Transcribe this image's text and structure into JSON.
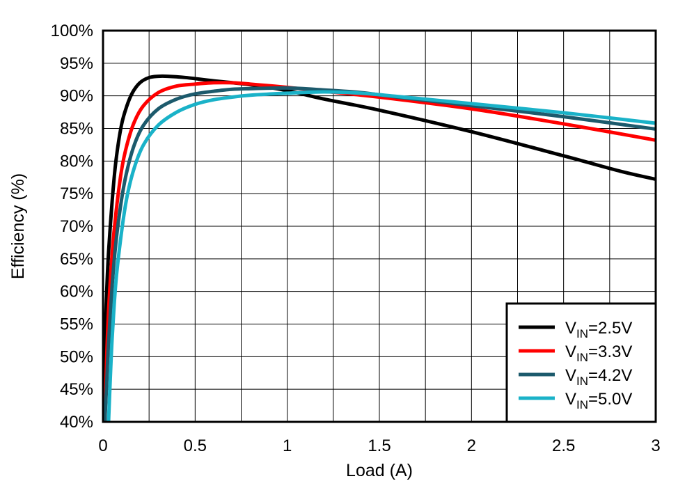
{
  "chart_data": {
    "type": "line",
    "title": "",
    "xlabel": "Load (A)",
    "ylabel": "Efficiency (%)",
    "xlim": [
      0,
      3
    ],
    "ylim": [
      40,
      100
    ],
    "x_ticks": [
      0,
      0.5,
      1,
      1.5,
      2,
      2.5,
      3
    ],
    "x_tick_labels": [
      "0",
      "0.5",
      "1",
      "1.5",
      "2",
      "2.5",
      "3"
    ],
    "y_ticks": [
      40,
      45,
      50,
      55,
      60,
      65,
      70,
      75,
      80,
      85,
      90,
      95,
      100
    ],
    "y_tick_labels": [
      "40%",
      "45%",
      "50%",
      "55%",
      "60%",
      "65%",
      "70%",
      "75%",
      "80%",
      "85%",
      "90%",
      "95%",
      "100%"
    ],
    "grid": true,
    "legend_position": "bottom-right",
    "series": [
      {
        "name": "VIN=2.5V",
        "label_main": "V",
        "label_sub": "IN",
        "label_rest": "=2.5V",
        "color": "#000000",
        "x": [
          0.005,
          0.01,
          0.02,
          0.03,
          0.05,
          0.07,
          0.1,
          0.13,
          0.16,
          0.2,
          0.25,
          0.3,
          0.35,
          0.45,
          0.6,
          0.8,
          1.0,
          1.2,
          1.5,
          2.0,
          2.5,
          2.8,
          3.0
        ],
        "y": [
          40,
          52,
          60,
          66,
          74,
          80,
          85.5,
          88.5,
          90.5,
          92,
          92.8,
          93,
          93,
          92.8,
          92.3,
          91.7,
          90.8,
          89.5,
          87.8,
          84.5,
          80.8,
          78.5,
          77.2
        ]
      },
      {
        "name": "VIN=3.3V",
        "label_main": "V",
        "label_sub": "IN",
        "label_rest": "=3.3V",
        "color": "#ff0000",
        "x": [
          0.01,
          0.02,
          0.03,
          0.05,
          0.07,
          0.1,
          0.13,
          0.17,
          0.22,
          0.3,
          0.4,
          0.5,
          0.6,
          0.7,
          0.8,
          1.0,
          1.2,
          1.5,
          2.0,
          2.5,
          3.0
        ],
        "y": [
          40,
          50,
          57,
          66,
          72,
          78.5,
          82.5,
          86,
          88.5,
          90.5,
          91.5,
          91.8,
          92,
          92,
          91.8,
          91.3,
          90.7,
          89.8,
          88,
          85.7,
          83.2
        ]
      },
      {
        "name": "VIN=4.2V",
        "label_main": "V",
        "label_sub": "IN",
        "label_rest": "=4.2V",
        "color": "#1c5a6c",
        "x": [
          0.01,
          0.02,
          0.03,
          0.05,
          0.07,
          0.1,
          0.13,
          0.17,
          0.22,
          0.3,
          0.4,
          0.5,
          0.6,
          0.7,
          0.8,
          1.0,
          1.2,
          1.4,
          1.6,
          2.0,
          2.5,
          3.0
        ],
        "y": [
          40,
          46,
          52,
          61,
          67.5,
          74,
          78.5,
          82.5,
          85.5,
          88,
          89.5,
          90.3,
          90.7,
          91,
          91.1,
          91.2,
          90.9,
          90.5,
          89.8,
          88.5,
          86.8,
          84.9
        ]
      },
      {
        "name": "VIN=5.0V",
        "label_main": "V",
        "label_sub": "IN",
        "label_rest": "=5.0V",
        "color": "#1ab2c8",
        "x": [
          0.03,
          0.04,
          0.05,
          0.07,
          0.1,
          0.13,
          0.17,
          0.22,
          0.3,
          0.4,
          0.5,
          0.6,
          0.7,
          0.8,
          1.0,
          1.2,
          1.4,
          1.6,
          2.0,
          2.5,
          3.0
        ],
        "y": [
          40,
          47,
          53,
          61.5,
          69,
          74.5,
          79,
          82.5,
          85.5,
          87.5,
          88.7,
          89.4,
          89.8,
          90.1,
          90.4,
          90.6,
          90.4,
          89.9,
          88.8,
          87.4,
          85.8
        ]
      }
    ]
  }
}
